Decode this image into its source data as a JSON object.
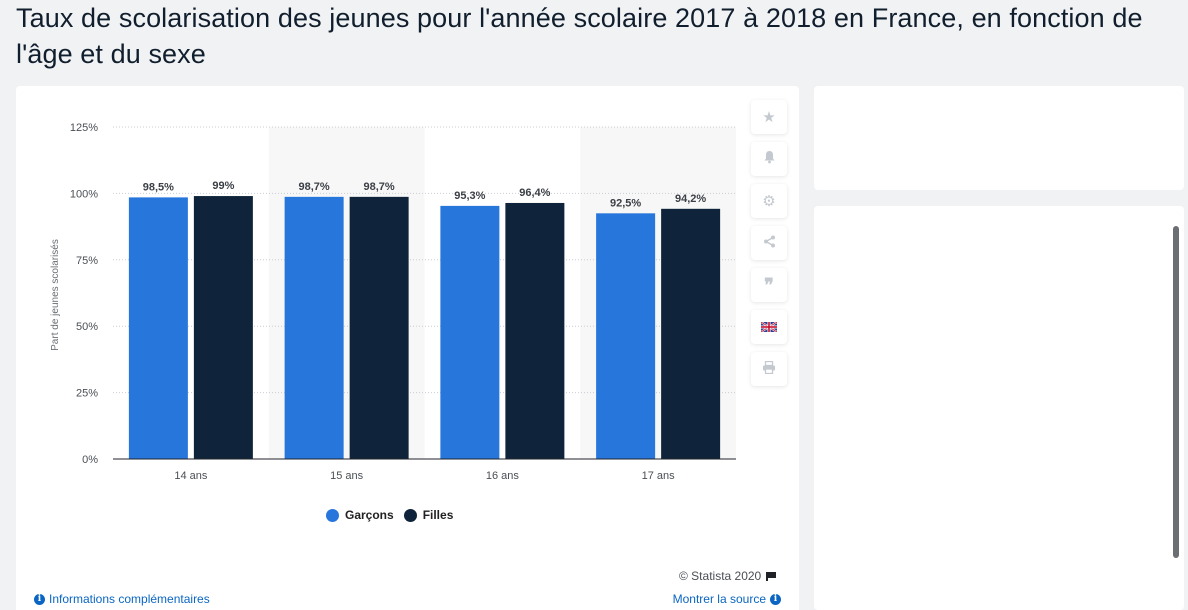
{
  "page": {
    "title": "Taux de scolarisation des jeunes pour l'année scolaire 2017 à 2018 en France, en fonction de l'âge et du sexe"
  },
  "toolbar": {
    "items": [
      "star-icon",
      "bell-icon",
      "gear-icon",
      "share-icon",
      "quote-icon",
      "flag-uk-icon",
      "print-icon"
    ]
  },
  "footer": {
    "info_label": "Informations complémentaires",
    "source_label": "Montrer la source",
    "copyright": "© Statista 2020"
  },
  "colors": {
    "garcons": "#2776db",
    "filles": "#0f243b",
    "link": "#0a66c2"
  },
  "chart_data": {
    "type": "bar",
    "title": "",
    "ylabel": "Part de jeunes scolarisés",
    "xlabel": "",
    "categories": [
      "14 ans",
      "15 ans",
      "16 ans",
      "17 ans"
    ],
    "series": [
      {
        "name": "Garçons",
        "values": [
          98.5,
          98.7,
          95.3,
          92.5
        ],
        "labels": [
          "98,5%",
          "98,7%",
          "95,3%",
          "92,5%"
        ]
      },
      {
        "name": "Filles",
        "values": [
          99,
          98.7,
          96.4,
          94.2
        ],
        "labels": [
          "99%",
          "98,7%",
          "96,4%",
          "94,2%"
        ]
      }
    ],
    "ylim": [
      0,
      125
    ],
    "yticks": [
      0,
      25,
      50,
      75,
      100,
      125
    ],
    "ytick_labels": [
      "0%",
      "25%",
      "50%",
      "75%",
      "100%",
      "125%"
    ],
    "grid": true,
    "legend": "bottom"
  }
}
